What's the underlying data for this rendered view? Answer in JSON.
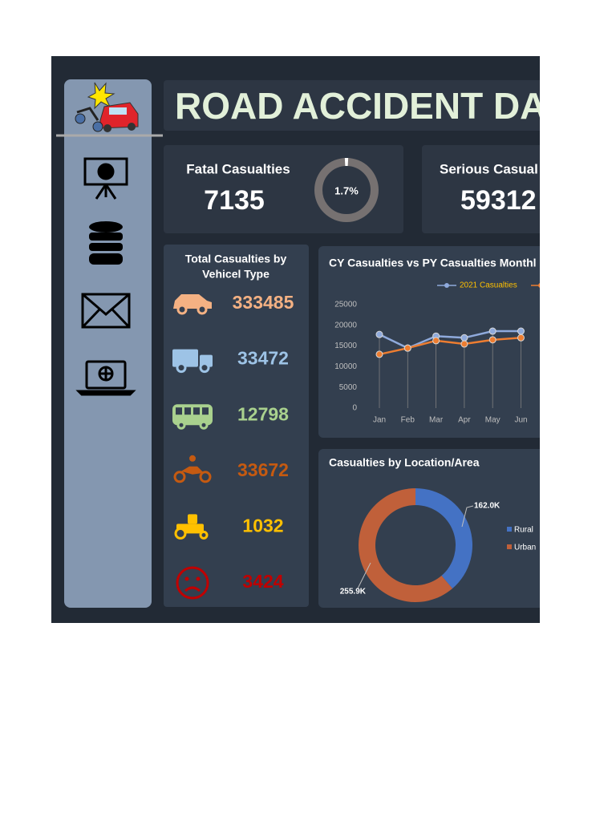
{
  "header": {
    "title": "ROAD ACCIDENT DAS"
  },
  "kpis": [
    {
      "label": "Fatal Casualties",
      "value": 7135,
      "share": 1.7,
      "share_label": "1.7%"
    },
    {
      "label": "Serious Casual",
      "value": 59312
    }
  ],
  "vehicles": {
    "title": [
      "Total Casualties by",
      "Vehicel Type"
    ],
    "items": [
      {
        "value": 333485,
        "color": "#f4b183"
      },
      {
        "value": 33472,
        "color": "#9dc3e6"
      },
      {
        "value": 12798,
        "color": "#a9d18e"
      },
      {
        "value": 33672,
        "color": "#c55a11"
      },
      {
        "value": 1032,
        "color": "#ffc000"
      },
      {
        "value": 3424,
        "color": "#c00000"
      }
    ]
  },
  "chart_data": [
    {
      "type": "line",
      "title": "CY Casualties vs PY Casualties Monthl",
      "categories": [
        "Jan",
        "Feb",
        "Mar",
        "Apr",
        "May",
        "Jun"
      ],
      "series": [
        {
          "name": "2021 Casualties",
          "color": "#8faadc",
          "values": [
            17800,
            14500,
            17400,
            17000,
            18600,
            18600
          ]
        },
        {
          "color": "#ed7d31",
          "values": [
            13000,
            14500,
            16300,
            15500,
            16500,
            17000
          ]
        }
      ],
      "ylim": [
        0,
        25000
      ],
      "yticks": [
        0,
        5000,
        10000,
        15000,
        20000,
        25000
      ]
    },
    {
      "type": "donut",
      "title": "Casualties by Location/Area",
      "categories": [
        "Rural",
        "Urban"
      ],
      "values": [
        162000,
        255900
      ],
      "value_labels": [
        "162.0K",
        "255.9K"
      ],
      "colors": [
        "#4472c4",
        "#c0603a"
      ]
    }
  ]
}
